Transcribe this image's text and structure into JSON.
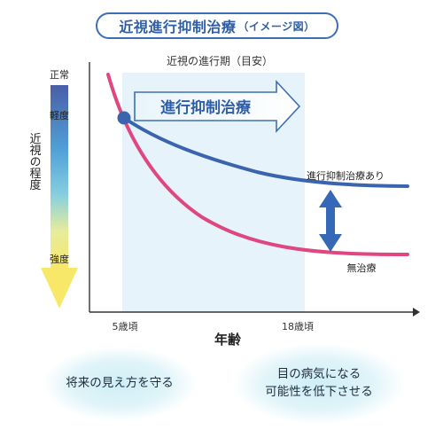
{
  "title": {
    "main": "近視進行抑制治療",
    "sub": "（イメージ図）"
  },
  "period_label": "近視の進行期（目安）",
  "arrow_label": "進行抑制治療",
  "severity_scale": {
    "top_label": "正常",
    "mild_label": "軽度",
    "axis_title": "近視の程度",
    "strong_label": "強度"
  },
  "x_axis": {
    "title": "年齢",
    "tick_start": "5歳頃",
    "tick_end": "18歳頃"
  },
  "curves": {
    "treated_label": "進行抑制治療あり",
    "untreated_label": "無治療",
    "treated_color": "#3b64ae",
    "untreated_color": "#e0467f"
  },
  "benefits": [
    {
      "text": "将来の見え方を守る"
    },
    {
      "line1": "目の病気になる",
      "line2": "可能性を低下させる"
    }
  ],
  "colors": {
    "accent_blue": "#3d6fb6",
    "period_band": "#e6f3fa",
    "double_arrow": "#3568b6"
  }
}
